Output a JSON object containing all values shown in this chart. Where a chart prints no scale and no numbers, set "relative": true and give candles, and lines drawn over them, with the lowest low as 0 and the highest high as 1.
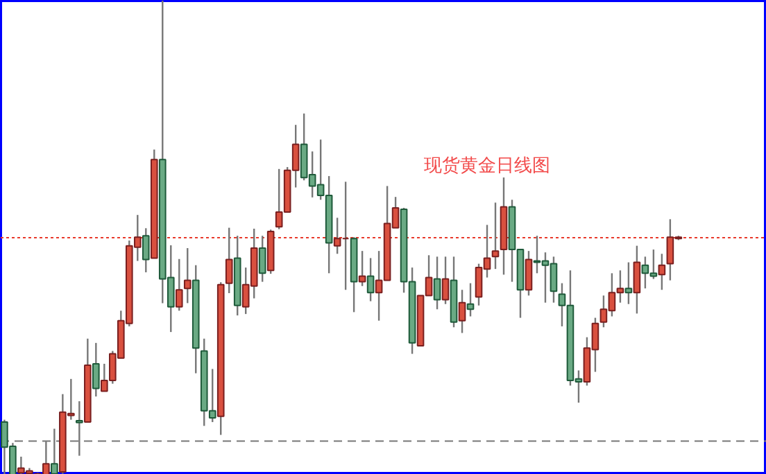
{
  "chart_data": {
    "type": "candlestick",
    "relative": true,
    "annotations": [
      "现货黄金日线图"
    ],
    "categories": [
      null,
      null,
      null,
      null,
      null,
      null,
      null,
      null,
      null,
      null,
      null,
      null,
      null,
      null,
      null,
      null,
      null,
      null,
      null,
      null,
      null,
      null,
      null,
      null,
      null,
      null,
      null,
      null,
      null,
      null,
      null,
      null,
      null,
      null,
      null,
      null,
      null,
      null,
      null,
      null,
      null,
      null,
      null,
      null,
      null,
      null,
      null,
      null,
      null,
      null,
      null,
      null,
      null,
      null,
      null,
      null,
      null,
      null,
      null,
      null,
      null,
      null,
      null,
      null,
      null,
      null,
      null,
      null,
      null,
      null,
      null,
      null,
      null,
      null,
      null,
      null,
      null,
      null,
      null,
      null,
      null,
      null
    ],
    "ohlc": [
      [
        0.111,
        0.116,
        0,
        0.058
      ],
      [
        0.06,
        0.067,
        0,
        0
      ],
      [
        0.004,
        0.038,
        0,
        0.014
      ],
      [
        0.003,
        0.014,
        0,
        0.008
      ],
      [
        0.001,
        0.004,
        0,
        0.002
      ],
      [
        0,
        0.07,
        0,
        0.023
      ],
      [
        0.023,
        0.097,
        0,
        0.002
      ],
      [
        0.006,
        0.17,
        0.002,
        0.132
      ],
      [
        0.125,
        0.202,
        0.116,
        0.129
      ],
      [
        0.114,
        0.155,
        0.04,
        0.11
      ],
      [
        0.111,
        0.287,
        0.111,
        0.231
      ],
      [
        0.234,
        0.278,
        0.165,
        0.182
      ],
      [
        0.176,
        0.234,
        0.176,
        0.199
      ],
      [
        0.199,
        0.261,
        0.192,
        0.255
      ],
      [
        0.246,
        0.346,
        0.246,
        0.325
      ],
      [
        0.319,
        0.494,
        0.313,
        0.483
      ],
      [
        0.48,
        0.548,
        0.451,
        0.501
      ],
      [
        0.504,
        0.52,
        0.427,
        0.454
      ],
      [
        0.457,
        0.686,
        0.457,
        0.665
      ],
      [
        0.665,
        1,
        0.362,
        0.413
      ],
      [
        0.416,
        0.484,
        0.301,
        0.354
      ],
      [
        0.354,
        0.455,
        0.346,
        0.39
      ],
      [
        0.393,
        0.478,
        0.362,
        0.41
      ],
      [
        0.41,
        0.442,
        0.214,
        0.267
      ],
      [
        0.261,
        0.287,
        0.103,
        0.135
      ],
      [
        0.135,
        0.223,
        0.111,
        0.12
      ],
      [
        0.123,
        0.406,
        0.084,
        0.401
      ],
      [
        0.404,
        0.521,
        0.383,
        0.454
      ],
      [
        0.457,
        0.504,
        0.336,
        0.357
      ],
      [
        0.354,
        0.437,
        0.339,
        0.401
      ],
      [
        0.398,
        0.519,
        0.372,
        0.478
      ],
      [
        0.478,
        0.504,
        0.407,
        0.425
      ],
      [
        0.431,
        0.517,
        0.424,
        0.513
      ],
      [
        0.523,
        0.645,
        0.518,
        0.554
      ],
      [
        0.554,
        0.649,
        0.554,
        0.642
      ],
      [
        0.642,
        0.738,
        0.606,
        0.697
      ],
      [
        0.697,
        0.762,
        0.621,
        0.627
      ],
      [
        0.633,
        0.682,
        0.585,
        0.609
      ],
      [
        0.612,
        0.707,
        0.58,
        0.589
      ],
      [
        0.589,
        0.63,
        0.425,
        0.489
      ],
      [
        0.483,
        0.542,
        0.466,
        0.498
      ],
      [
        0.498,
        0.618,
        0.39,
        0.498
      ],
      [
        0.498,
        0.501,
        0.343,
        0.407
      ],
      [
        0.407,
        0.472,
        0.398,
        0.419
      ],
      [
        0.419,
        0.457,
        0.366,
        0.384
      ],
      [
        0.384,
        0.472,
        0.325,
        0.41
      ],
      [
        0.41,
        0.609,
        0.41,
        0.53
      ],
      [
        0.521,
        0.586,
        0.521,
        0.563
      ],
      [
        0.56,
        0.563,
        0.384,
        0.407
      ],
      [
        0.407,
        0.437,
        0.255,
        0.278
      ],
      [
        0.272,
        0.378,
        0.272,
        0.378
      ],
      [
        0.378,
        0.463,
        0.378,
        0.416
      ],
      [
        0.413,
        0.46,
        0.349,
        0.369
      ],
      [
        0.369,
        0.46,
        0.36,
        0.413
      ],
      [
        0.41,
        0.46,
        0.311,
        0.322
      ],
      [
        0.325,
        0.39,
        0.299,
        0.363
      ],
      [
        0.36,
        0.404,
        0.334,
        0.349
      ],
      [
        0.375,
        0.445,
        0.357,
        0.437
      ],
      [
        0.434,
        0.527,
        0.416,
        0.457
      ],
      [
        0.46,
        0.574,
        0.434,
        0.472
      ],
      [
        0.475,
        0.627,
        0.422,
        0.565
      ],
      [
        0.565,
        0.58,
        0.407,
        0.475
      ],
      [
        0.475,
        0.475,
        0.331,
        0.39
      ],
      [
        0.39,
        0.472,
        0.378,
        0.454
      ],
      [
        0.451,
        0.504,
        0.425,
        0.448
      ],
      [
        0.451,
        0.469,
        0.363,
        0.442
      ],
      [
        0.445,
        0.46,
        0.363,
        0.387
      ],
      [
        0.381,
        0.404,
        0.313,
        0.357
      ],
      [
        0.357,
        0.431,
        0.188,
        0.199
      ],
      [
        0.202,
        0.22,
        0.152,
        0.196
      ],
      [
        0.196,
        0.29,
        0.188,
        0.267
      ],
      [
        0.264,
        0.331,
        0.217,
        0.319
      ],
      [
        0.322,
        0.378,
        0.311,
        0.349
      ],
      [
        0.346,
        0.425,
        0.334,
        0.384
      ],
      [
        0.384,
        0.431,
        0.363,
        0.393
      ],
      [
        0.393,
        0.448,
        0.36,
        0.384
      ],
      [
        0.384,
        0.483,
        0.34,
        0.448
      ],
      [
        0.442,
        0.46,
        0.393,
        0.425
      ],
      [
        0.425,
        0.475,
        0.413,
        0.419
      ],
      [
        0.422,
        0.466,
        0.39,
        0.442
      ],
      [
        0.445,
        0.539,
        0.41,
        0.501
      ],
      [
        0.498,
        0.504,
        0.495,
        0.501
      ]
    ],
    "ref_lines": [
      {
        "axis": "y",
        "value": 0.5,
        "color": "#e8392b",
        "line_style": "dotted"
      },
      {
        "axis": "y",
        "value": 0.071,
        "color": "#777777",
        "line_style": "dashed"
      }
    ]
  }
}
